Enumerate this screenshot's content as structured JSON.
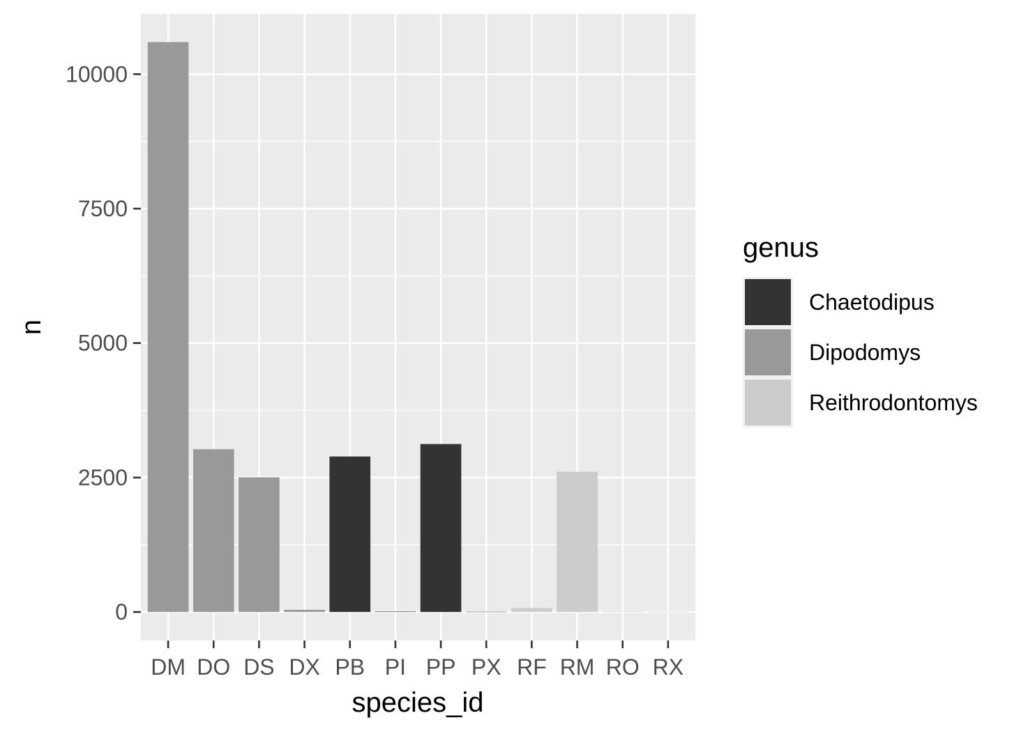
{
  "chart_data": {
    "type": "bar",
    "xlabel": "species_id",
    "ylabel": "n",
    "categories": [
      "DM",
      "DO",
      "DS",
      "DX",
      "PB",
      "PI",
      "PP",
      "PX",
      "RF",
      "RM",
      "RO",
      "RX"
    ],
    "values": [
      10596,
      3027,
      2504,
      40,
      2891,
      9,
      3123,
      6,
      75,
      2609,
      8,
      2
    ],
    "groups": [
      "Dipodomys",
      "Dipodomys",
      "Dipodomys",
      "Dipodomys",
      "Chaetodipus",
      "Chaetodipus",
      "Chaetodipus",
      "Chaetodipus",
      "Reithrodontomys",
      "Reithrodontomys",
      "Reithrodontomys",
      "Reithrodontomys"
    ],
    "yticks": [
      0,
      2500,
      5000,
      7500,
      10000
    ],
    "ytick_labels": [
      "0",
      "2500",
      "5000",
      "7500",
      "10000"
    ],
    "ylim": [
      -530,
      11120
    ],
    "grid": true,
    "legend": {
      "title": "genus",
      "position": "right",
      "entries": [
        {
          "label": "Chaetodipus",
          "color": "#333333"
        },
        {
          "label": "Dipodomys",
          "color": "#999999"
        },
        {
          "label": "Reithrodontomys",
          "color": "#cccccc"
        }
      ]
    },
    "colors": {
      "panel_background": "#ebebeb",
      "grid": "#ffffff",
      "tick_text": "#4d4d4d",
      "tick_mark": "#333333"
    }
  }
}
